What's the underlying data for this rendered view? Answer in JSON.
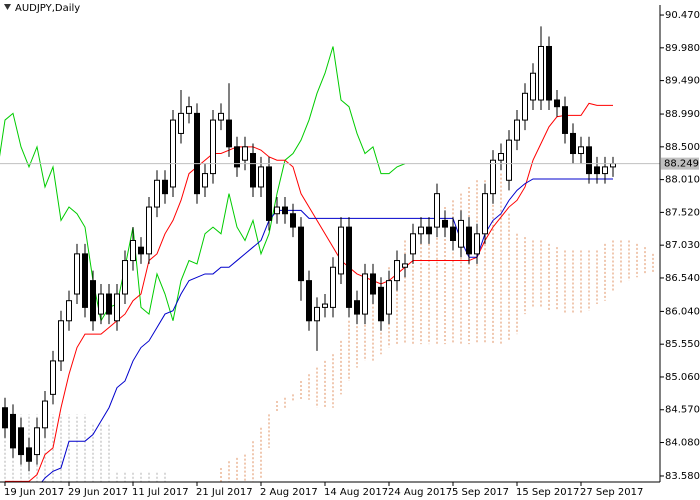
{
  "chart_data": {
    "type": "candlestick",
    "title": "AUDJPY,Daily",
    "categories": [
      "19 Jun 2017",
      null,
      null,
      null,
      null,
      null,
      null,
      null,
      "29 Jun 2017",
      null,
      null,
      null,
      null,
      null,
      null,
      null,
      "11 Jul 2017",
      null,
      null,
      null,
      null,
      null,
      null,
      null,
      "21 Jul 2017",
      null,
      null,
      null,
      null,
      null,
      null,
      null,
      "2 Aug 2017",
      null,
      null,
      null,
      null,
      null,
      null,
      null,
      "14 Aug 2017",
      null,
      null,
      null,
      null,
      null,
      null,
      null,
      "24 Aug 2017",
      null,
      null,
      null,
      null,
      null,
      null,
      null,
      "5 Sep 2017",
      null,
      null,
      null,
      null,
      null,
      null,
      null,
      "15 Sep 2017",
      null,
      null,
      null,
      null,
      null,
      null,
      null,
      "27 Sep 2017",
      null,
      null,
      null,
      null,
      null,
      null,
      null,
      null,
      null,
      null
    ],
    "open": [
      84.6,
      84.5,
      84.3,
      84.0,
      83.9,
      84.3,
      84.8,
      85.3,
      85.9,
      86.3,
      86.9,
      86.5,
      86.0,
      86.3,
      85.9,
      86.3,
      86.8,
      87.0,
      86.9,
      87.6,
      88.0,
      87.9,
      88.7,
      89.0,
      89.0,
      87.9,
      88.1,
      88.9,
      88.9,
      88.5,
      88.3,
      88.4,
      87.9,
      88.2,
      87.5,
      87.6,
      87.5,
      87.3,
      86.5,
      85.9,
      86.1,
      86.1,
      86.6,
      87.3,
      86.2,
      86.0,
      86.6,
      86.4,
      86.0,
      86.5,
      86.7,
      86.9,
      87.2,
      87.3,
      87.3,
      87.4,
      87.3,
      87.0,
      87.3,
      86.9,
      87.2,
      87.8,
      88.3,
      88.0,
      88.6,
      88.9,
      89.2,
      89.2,
      90.0,
      89.2,
      89.1,
      88.7,
      88.4,
      88.5,
      88.2,
      88.1,
      88.2,
      null,
      null,
      null,
      null,
      null,
      null
    ],
    "high": [
      84.75,
      84.65,
      84.45,
      84.15,
      84.45,
      84.85,
      85.45,
      86.05,
      86.35,
      87.05,
      87.05,
      86.65,
      86.45,
      86.45,
      86.45,
      86.95,
      87.3,
      87.15,
      87.75,
      88.15,
      88.15,
      89.05,
      89.35,
      89.25,
      89.15,
      88.25,
      89.05,
      89.15,
      89.45,
      88.65,
      88.65,
      88.55,
      88.35,
      88.35,
      87.75,
      87.75,
      87.65,
      87.45,
      86.65,
      86.25,
      86.3,
      86.85,
      87.45,
      87.45,
      86.35,
      86.75,
      86.75,
      86.55,
      86.65,
      86.95,
      86.9,
      87.35,
      87.45,
      87.45,
      87.95,
      87.55,
      87.45,
      87.55,
      87.45,
      87.35,
      87.95,
      88.45,
      88.55,
      88.75,
      89.05,
      89.45,
      89.75,
      90.3,
      90.15,
      89.35,
      89.25,
      88.85,
      88.65,
      88.65,
      88.35,
      88.35,
      88.35,
      null,
      null,
      null,
      null,
      null,
      null
    ],
    "low": [
      84.15,
      83.85,
      83.75,
      83.65,
      83.75,
      84.15,
      84.65,
      85.15,
      85.75,
      86.15,
      85.95,
      85.75,
      85.85,
      85.85,
      85.75,
      86.15,
      86.65,
      86.75,
      86.75,
      87.45,
      87.65,
      87.75,
      88.55,
      88.85,
      87.65,
      87.75,
      87.95,
      88.75,
      88.35,
      88.05,
      88.15,
      87.75,
      87.75,
      87.25,
      87.35,
      87.35,
      87.15,
      86.2,
      85.75,
      85.45,
      85.95,
      85.95,
      86.45,
      85.95,
      85.85,
      85.85,
      86.15,
      85.75,
      85.85,
      86.35,
      86.55,
      86.75,
      87.05,
      87.05,
      87.15,
      87.15,
      86.95,
      86.85,
      86.75,
      86.75,
      87.05,
      87.65,
      88.15,
      87.85,
      88.45,
      88.75,
      89.05,
      89.05,
      89.05,
      88.95,
      88.55,
      88.25,
      88.25,
      87.95,
      87.95,
      87.95,
      88.05,
      null,
      null,
      null,
      null,
      null,
      null
    ],
    "close": [
      84.3,
      84.0,
      83.9,
      83.8,
      84.3,
      84.7,
      85.3,
      85.9,
      86.2,
      86.9,
      86.1,
      85.9,
      86.3,
      86.0,
      86.3,
      86.8,
      87.1,
      86.9,
      87.6,
      88.0,
      87.8,
      88.9,
      89.0,
      89.1,
      87.8,
      88.1,
      88.9,
      89.0,
      88.5,
      88.2,
      88.5,
      87.9,
      88.2,
      87.4,
      87.6,
      87.5,
      87.3,
      86.5,
      85.9,
      86.1,
      86.15,
      86.7,
      87.3,
      86.1,
      86.0,
      86.6,
      86.3,
      85.9,
      86.5,
      86.8,
      86.75,
      87.2,
      87.3,
      87.2,
      87.8,
      87.3,
      87.1,
      87.4,
      86.9,
      87.2,
      87.8,
      88.3,
      88.4,
      88.6,
      88.9,
      89.3,
      89.6,
      90.0,
      89.2,
      89.1,
      88.7,
      88.4,
      88.5,
      88.1,
      88.1,
      88.2,
      88.249,
      null,
      null,
      null,
      null,
      null,
      null
    ],
    "tenkan_sen": {
      "color": "#ff0000",
      "values": [
        83.5,
        83.5,
        83.5,
        83.5,
        83.6,
        83.9,
        84.0,
        84.6,
        85.1,
        85.5,
        85.7,
        85.7,
        85.7,
        85.8,
        85.9,
        86.0,
        86.2,
        86.3,
        86.8,
        86.9,
        87.2,
        87.4,
        87.7,
        88.1,
        88.2,
        88.3,
        88.4,
        88.4,
        88.45,
        88.5,
        88.5,
        88.5,
        88.45,
        88.35,
        88.3,
        88.3,
        88.2,
        87.8,
        87.6,
        87.4,
        87.2,
        87.0,
        86.8,
        86.7,
        86.6,
        86.55,
        86.5,
        86.45,
        86.5,
        86.6,
        86.7,
        86.8,
        86.8,
        86.8,
        86.8,
        86.8,
        86.8,
        86.8,
        86.8,
        86.85,
        87.1,
        87.3,
        87.45,
        87.6,
        87.7,
        87.9,
        88.3,
        88.55,
        88.8,
        88.95,
        88.97,
        88.97,
        88.97,
        89.15,
        89.12,
        89.12,
        89.12,
        null,
        null,
        null,
        null,
        null,
        null
      ]
    },
    "kijun_sen": {
      "color": "#0000cc",
      "values": [
        83.4,
        83.4,
        83.4,
        83.4,
        83.4,
        83.55,
        83.65,
        83.7,
        84.1,
        84.1,
        84.1,
        84.2,
        84.4,
        84.6,
        84.9,
        85.0,
        85.3,
        85.5,
        85.6,
        85.8,
        86.0,
        86.05,
        86.3,
        86.5,
        86.55,
        86.6,
        86.6,
        86.7,
        86.7,
        86.8,
        86.9,
        87.0,
        87.1,
        87.4,
        87.55,
        87.55,
        87.55,
        87.55,
        87.43,
        87.43,
        87.43,
        87.43,
        87.43,
        87.43,
        87.43,
        87.43,
        87.43,
        87.43,
        87.43,
        87.43,
        87.43,
        87.43,
        87.43,
        87.43,
        87.43,
        87.43,
        87.43,
        87.1,
        86.85,
        86.85,
        87.2,
        87.4,
        87.5,
        87.7,
        87.85,
        87.95,
        88.02,
        88.02,
        88.02,
        88.02,
        88.02,
        88.02,
        88.02,
        88.02,
        88.02,
        88.02,
        88.02,
        null,
        null,
        null,
        null,
        null,
        null
      ]
    },
    "chikou_span": {
      "color": "#00cc00",
      "shift": -26
    },
    "span_a": [
      83.3,
      83.3,
      83.3,
      83.3,
      83.3,
      83.3,
      83.3,
      83.3,
      83.3,
      83.3,
      83.3,
      83.3,
      83.3,
      83.3,
      83.3,
      83.3,
      83.3,
      83.3,
      83.3,
      83.3,
      83.3,
      83.45,
      83.45,
      83.45,
      83.45,
      83.45,
      83.45,
      83.7,
      83.8,
      83.85,
      83.9,
      84.1,
      84.3,
      84.5,
      84.7,
      84.75,
      84.8,
      85.0,
      85.1,
      85.2,
      85.3,
      85.4,
      85.6,
      85.9,
      86.0,
      86.2,
      86.35,
      86.5,
      86.7,
      86.9,
      87.1,
      87.2,
      87.3,
      87.35,
      87.5,
      87.6,
      87.7,
      87.8,
      87.9,
      88.0,
      88.0,
      88.05,
      88.1,
      87.5,
      87.2,
      87.15,
      87.1,
      87.1,
      87.05,
      87.0,
      86.95,
      86.95,
      86.95,
      86.95,
      86.95,
      87.05,
      87.1,
      87.1,
      87.1,
      87.05,
      87.0,
      86.9,
      86.85
    ],
    "span_b": [
      84.5,
      84.5,
      84.5,
      84.5,
      84.5,
      84.5,
      84.5,
      84.5,
      84.5,
      84.5,
      84.5,
      84.35,
      84.35,
      84.35,
      83.65,
      83.65,
      83.65,
      83.65,
      83.65,
      83.65,
      83.65,
      83.5,
      83.5,
      83.5,
      83.5,
      83.5,
      83.5,
      83.4,
      83.4,
      83.4,
      83.4,
      83.5,
      83.55,
      84.0,
      84.55,
      84.6,
      84.7,
      84.72,
      84.72,
      84.6,
      84.6,
      84.6,
      84.8,
      85.0,
      85.2,
      85.3,
      85.3,
      85.4,
      85.5,
      85.55,
      85.55,
      85.55,
      85.55,
      85.55,
      85.55,
      85.55,
      85.55,
      85.55,
      85.55,
      85.55,
      85.55,
      85.55,
      85.55,
      85.6,
      85.7,
      86.0,
      86.1,
      86.1,
      86.05,
      86.05,
      86.0,
      86.0,
      86.0,
      86.05,
      86.15,
      86.2,
      86.35,
      86.45,
      86.5,
      86.55,
      86.6,
      86.62,
      86.65
    ],
    "cloud_up_color": "#e09060",
    "cloud_down_color": "#b0b0b0",
    "up_color": "#ffffff",
    "down_color": "#000000",
    "last_price": 88.249,
    "ylim": [
      83.49,
      90.62
    ],
    "yticks": [
      {
        "value": 83.58,
        "label": "83.580"
      },
      {
        "value": 84.08,
        "label": "84.080"
      },
      {
        "value": 84.57,
        "label": "84.570"
      },
      {
        "value": 85.06,
        "label": "85.060"
      },
      {
        "value": 85.55,
        "label": "85.550"
      },
      {
        "value": 86.04,
        "label": "86.040"
      },
      {
        "value": 86.54,
        "label": "86.540"
      },
      {
        "value": 87.03,
        "label": "87.030"
      },
      {
        "value": 87.52,
        "label": "87.520"
      },
      {
        "value": 88.01,
        "label": "88.010"
      },
      {
        "value": 88.5,
        "label": "88.500"
      },
      {
        "value": 88.99,
        "label": "88.990"
      },
      {
        "value": 89.49,
        "label": "89.490"
      },
      {
        "value": 89.98,
        "label": "89.980"
      },
      {
        "value": 90.47,
        "label": "90.470"
      }
    ],
    "grid": false
  }
}
